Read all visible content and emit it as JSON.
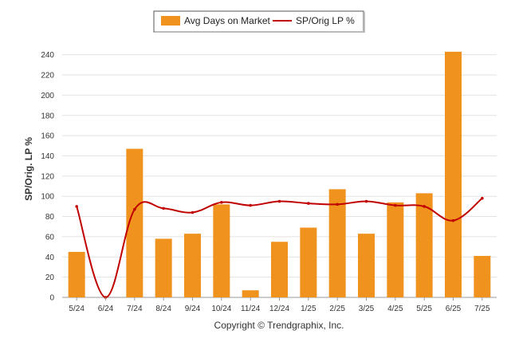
{
  "chart_data": {
    "type": "bar",
    "categories": [
      "5/24",
      "6/24",
      "7/24",
      "8/24",
      "9/24",
      "10/24",
      "11/24",
      "12/24",
      "1/25",
      "2/25",
      "3/25",
      "4/25",
      "5/25",
      "6/25",
      "7/25"
    ],
    "series": [
      {
        "name": "Avg Days on Market",
        "type": "bar",
        "color": "#f0931e",
        "values": [
          45,
          0,
          147,
          58,
          63,
          92,
          7,
          55,
          69,
          107,
          63,
          94,
          103,
          243,
          41
        ]
      },
      {
        "name": "SP/Orig LP %",
        "type": "line",
        "color": "#c00000",
        "values": [
          90,
          0,
          87,
          88,
          84,
          94,
          91,
          95,
          93,
          92,
          95,
          91,
          90,
          76,
          98
        ]
      }
    ],
    "ylabel": "SP/Orig. LP %",
    "ylim": [
      0,
      250
    ],
    "yticks": [
      0,
      20,
      40,
      60,
      80,
      100,
      120,
      140,
      160,
      180,
      200,
      220,
      240
    ],
    "grid": true,
    "legend": "top-center"
  },
  "footer": {
    "copyright": "Copyright © Trendgraphix, Inc."
  }
}
